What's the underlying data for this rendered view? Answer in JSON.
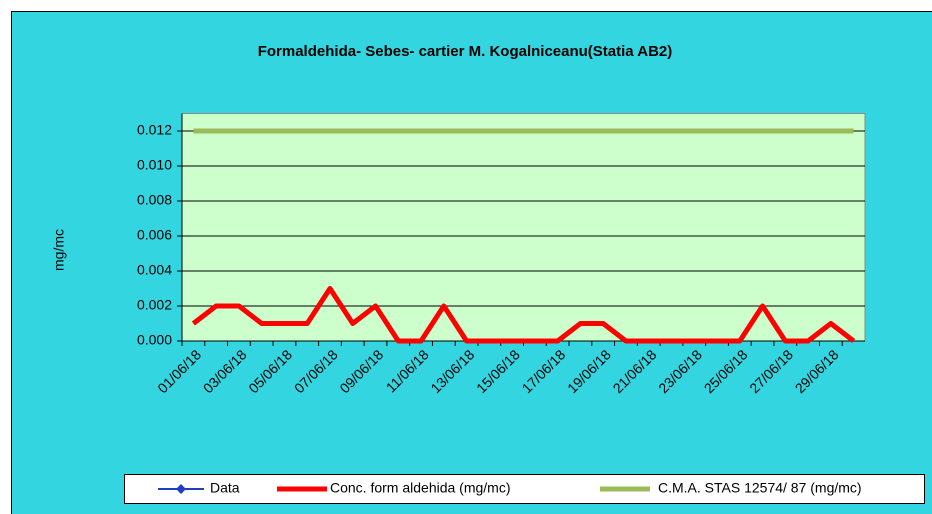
{
  "chart_data": {
    "type": "line",
    "title": "Formaldehida- Sebes- cartier M. Kogalniceanu(Statia AB2)",
    "ylabel": "mg/mc",
    "categories": [
      "01/06/18",
      null,
      "03/06/18",
      null,
      "05/06/18",
      null,
      "07/06/18",
      null,
      "09/06/18",
      null,
      "11/06/18",
      null,
      "13/06/18",
      null,
      "15/06/18",
      null,
      "17/06/18",
      null,
      "19/06/18",
      null,
      "21/06/18",
      null,
      "23/06/18",
      null,
      "25/06/18",
      null,
      "27/06/18",
      null,
      "29/06/18",
      null
    ],
    "series": [
      {
        "name": "Data",
        "color": "#1f3fbf",
        "values": [
          null,
          null,
          null,
          null,
          null,
          null,
          null,
          null,
          null,
          null,
          null,
          null,
          null,
          null,
          null,
          null,
          null,
          null,
          null,
          null,
          null,
          null,
          null,
          null,
          null,
          null,
          null,
          null,
          null,
          null
        ]
      },
      {
        "name": "Conc. form aldehida (mg/mc)",
        "color": "#ff0000",
        "values": [
          0.001,
          0.002,
          0.002,
          0.001,
          0.001,
          0.001,
          0.003,
          0.001,
          0.002,
          0,
          0,
          0.002,
          0,
          0,
          0,
          0,
          0,
          0.001,
          0.001,
          0,
          0,
          0,
          0,
          0,
          0,
          0.002,
          0,
          0,
          0.001,
          0
        ]
      },
      {
        "name": "C.M.A. STAS 12574/ 87 (mg/mc)",
        "color": "#9bbb59",
        "values": [
          0.012,
          0.012,
          0.012,
          0.012,
          0.012,
          0.012,
          0.012,
          0.012,
          0.012,
          0.012,
          0.012,
          0.012,
          0.012,
          0.012,
          0.012,
          0.012,
          0.012,
          0.012,
          0.012,
          0.012,
          0.012,
          0.012,
          0.012,
          0.012,
          0.012,
          0.012,
          0.012,
          0.012,
          0.012,
          0.012
        ]
      }
    ],
    "ylim": [
      0,
      0.013
    ],
    "yticks": [
      {
        "value": 0,
        "label": "0.000"
      },
      {
        "value": 0.002,
        "label": "0.002"
      },
      {
        "value": 0.004,
        "label": "0.004"
      },
      {
        "value": 0.006,
        "label": "0.006"
      },
      {
        "value": 0.008,
        "label": "0.008"
      },
      {
        "value": 0.01,
        "label": "0.010"
      },
      {
        "value": 0.012,
        "label": "0.012"
      }
    ],
    "grid": true
  }
}
